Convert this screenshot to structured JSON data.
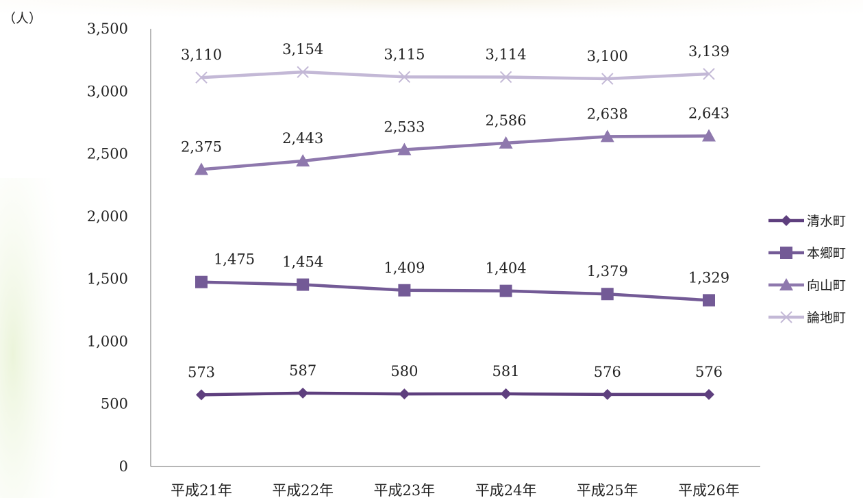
{
  "chart_data": {
    "type": "line",
    "unit_label": "（人）",
    "categories": [
      "平成21年",
      "平成22年",
      "平成23年",
      "平成24年",
      "平成25年",
      "平成26年"
    ],
    "ylim": [
      0,
      3500
    ],
    "yticks": [
      0,
      500,
      1000,
      1500,
      2000,
      2500,
      3000,
      3500
    ],
    "ytick_labels": [
      "0",
      "500",
      "1,000",
      "1,500",
      "2,000",
      "2,500",
      "3,000",
      "3,500"
    ],
    "grid": false,
    "legend_position": "right",
    "series": [
      {
        "name": "清水町",
        "marker": "diamond",
        "color": "#5e3f7e",
        "values": [
          573,
          587,
          580,
          581,
          576,
          576
        ],
        "labels": [
          "573",
          "587",
          "580",
          "581",
          "576",
          "576"
        ]
      },
      {
        "name": "本郷町",
        "marker": "square",
        "color": "#735a96",
        "values": [
          1475,
          1454,
          1409,
          1404,
          1379,
          1329
        ],
        "labels": [
          "1,475",
          "1,454",
          "1,409",
          "1,404",
          "1,379",
          "1,329"
        ]
      },
      {
        "name": "向山町",
        "marker": "triangle",
        "color": "#8e78ad",
        "values": [
          2375,
          2443,
          2533,
          2586,
          2638,
          2643
        ],
        "labels": [
          "2,375",
          "2,443",
          "2,533",
          "2,586",
          "2,638",
          "2,643"
        ]
      },
      {
        "name": "論地町",
        "marker": "x",
        "color": "#c3b8d6",
        "values": [
          3110,
          3154,
          3115,
          3114,
          3100,
          3139
        ],
        "labels": [
          "3,110",
          "3,154",
          "3,115",
          "3,114",
          "3,100",
          "3,139"
        ]
      }
    ]
  }
}
